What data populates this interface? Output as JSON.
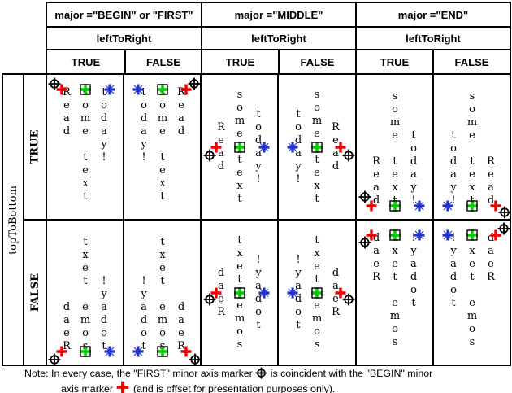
{
  "header": {
    "majors": [
      {
        "label": "major =\"BEGIN\" or \"FIRST\"",
        "sub_label": "leftToRight",
        "options": [
          "TRUE",
          "FALSE"
        ]
      },
      {
        "label": "major =\"MIDDLE\"",
        "sub_label": "leftToRight",
        "options": [
          "TRUE",
          "FALSE"
        ]
      },
      {
        "label": "major =\"END\"",
        "sub_label": "leftToRight",
        "options": [
          "TRUE",
          "FALSE"
        ]
      }
    ]
  },
  "rows": {
    "axis_label": "topToBottom",
    "options": [
      "TRUE",
      "FALSE"
    ]
  },
  "words": {
    "read": "Read",
    "some": "some text",
    "today": "today!"
  },
  "marker_colors": {
    "first_black": "#000000",
    "begin_red": "#ee0000",
    "middle_green": "#00cc00",
    "end_blue": "#2233cc"
  },
  "cells": [
    {
      "major": "BEGIN",
      "topToBottom": "TRUE",
      "leftToRight": "TRUE",
      "anchor": "top",
      "reversed": false,
      "first_offset": [
        -9,
        -7
      ]
    },
    {
      "major": "BEGIN",
      "topToBottom": "TRUE",
      "leftToRight": "FALSE",
      "anchor": "top",
      "reversed": false,
      "first_offset": [
        10,
        -7
      ]
    },
    {
      "major": "MIDDLE",
      "topToBottom": "TRUE",
      "leftToRight": "TRUE",
      "anchor": "middle",
      "reversed": false,
      "first_offset": [
        -8,
        10
      ]
    },
    {
      "major": "MIDDLE",
      "topToBottom": "TRUE",
      "leftToRight": "FALSE",
      "anchor": "middle",
      "reversed": false,
      "first_offset": [
        10,
        10
      ]
    },
    {
      "major": "END",
      "topToBottom": "TRUE",
      "leftToRight": "TRUE",
      "anchor": "bottom",
      "reversed": false,
      "first_offset": [
        -8,
        -11
      ]
    },
    {
      "major": "END",
      "topToBottom": "TRUE",
      "leftToRight": "FALSE",
      "anchor": "bottom",
      "reversed": false,
      "first_offset": [
        11,
        8
      ]
    },
    {
      "major": "BEGIN",
      "topToBottom": "FALSE",
      "leftToRight": "TRUE",
      "anchor": "bottom",
      "reversed": true,
      "first_offset": [
        -9,
        10
      ]
    },
    {
      "major": "BEGIN",
      "topToBottom": "FALSE",
      "leftToRight": "FALSE",
      "anchor": "bottom",
      "reversed": true,
      "first_offset": [
        11,
        10
      ]
    },
    {
      "major": "MIDDLE",
      "topToBottom": "FALSE",
      "leftToRight": "TRUE",
      "anchor": "middle",
      "reversed": true,
      "first_offset": [
        -8,
        8
      ]
    },
    {
      "major": "MIDDLE",
      "topToBottom": "FALSE",
      "leftToRight": "FALSE",
      "anchor": "middle",
      "reversed": true,
      "first_offset": [
        10,
        8
      ]
    },
    {
      "major": "END",
      "topToBottom": "FALSE",
      "leftToRight": "TRUE",
      "anchor": "top",
      "reversed": true,
      "first_offset": [
        -8,
        9
      ]
    },
    {
      "major": "END",
      "topToBottom": "FALSE",
      "leftToRight": "FALSE",
      "anchor": "top",
      "reversed": true,
      "first_offset": [
        10,
        -8
      ]
    }
  ],
  "note": {
    "part1": "Note: In every case, the \"FIRST\" minor axis marker",
    "part2": "is coincident with the \"BEGIN\" minor",
    "part3": "axis marker",
    "part4": "(and is offset for presentation purposes only)."
  }
}
